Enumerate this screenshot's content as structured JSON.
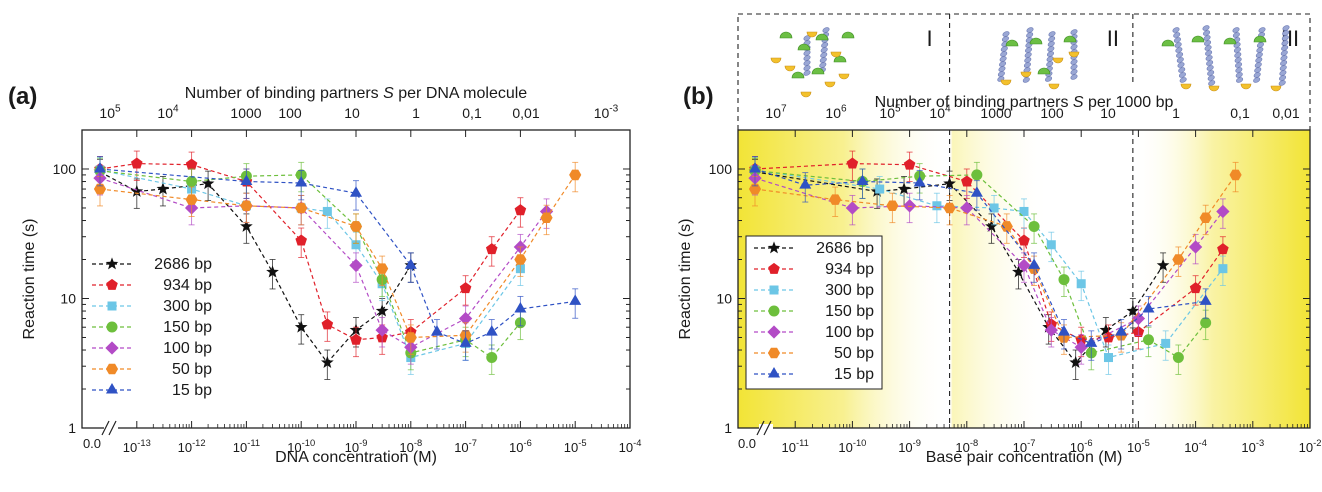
{
  "colors": {
    "2686 bp": "#111111",
    "934 bp": "#e0202a",
    "300 bp": "#6cc6e6",
    "150 bp": "#6dbf3c",
    "100 bp": "#b34bc6",
    "50 bp": "#f08a28",
    "15 bp": "#2f52c4",
    "gradient_yellow": "#f2e436"
  },
  "markers": {
    "2686 bp": "star",
    "934 bp": "pentagon",
    "300 bp": "square",
    "150 bp": "circle",
    "100 bp": "diamond",
    "50 bp": "hexagon",
    "15 bp": "triangle"
  },
  "chart_data": [
    {
      "type": "scatter",
      "panel_label": "(a)",
      "top_axis_label": "Number of binding partners S per DNA molecule",
      "top_axis_label_prefix": "Number of binding partners ",
      "top_axis_label_italic": "S",
      "top_axis_label_suffix": " per DNA molecule",
      "top_ticks": [
        "10^5",
        "10^4",
        "1000",
        "100",
        "10",
        "1",
        "0,1",
        "0,01",
        "10^-3"
      ],
      "xlabel": "DNA concentration (M)",
      "ylabel": "Reaction time (s)",
      "x_scale": "log",
      "y_scale": "log",
      "xlim": [
        1e-14,
        0.0001
      ],
      "ylim": [
        1,
        200
      ],
      "x_zero_label": "0.0",
      "x_ticks": [
        "10^-13",
        "10^-12",
        "10^-11",
        "10^-10",
        "10^-9",
        "10^-8",
        "10^-7",
        "10^-6",
        "10^-5",
        "10^-4"
      ],
      "y_ticks": [
        "1",
        "10",
        "100"
      ],
      "legend_position": "bottom-left",
      "legend_frame": false,
      "series": [
        {
          "name": "2686 bp",
          "x": [
            "0",
            1e-13,
            3e-13,
            2e-12,
            1e-11,
            3e-11,
            1e-10,
            3e-10,
            1e-09,
            3e-09,
            1e-08
          ],
          "y": [
            95,
            67,
            70,
            77,
            36,
            16,
            6,
            3.2,
            5.7,
            8,
            18
          ]
        },
        {
          "name": "934 bp",
          "x": [
            "0",
            1e-13,
            1e-12,
            1e-11,
            1e-10,
            3e-10,
            1e-09,
            3e-09,
            1e-08,
            1e-07,
            3e-07,
            1e-06
          ],
          "y": [
            100,
            110,
            108,
            80,
            28,
            6.3,
            4.8,
            5,
            5.5,
            12,
            24,
            48
          ]
        },
        {
          "name": "300 bp",
          "x": [
            "0",
            1e-12,
            1e-11,
            1e-10,
            3e-10,
            1e-09,
            3e-09,
            1e-08,
            1e-07,
            1e-06
          ],
          "y": [
            98,
            70,
            52,
            50,
            47,
            26,
            13,
            3.5,
            4.5,
            17
          ]
        },
        {
          "name": "150 bp",
          "x": [
            "0",
            1e-12,
            1e-11,
            1e-10,
            1e-09,
            3e-09,
            1e-08,
            1e-07,
            3e-07,
            1e-06
          ],
          "y": [
            97,
            80,
            88,
            90,
            36,
            14,
            3.8,
            4.8,
            3.5,
            6.5
          ]
        },
        {
          "name": "100 bp",
          "x": [
            "0",
            1e-12,
            1e-11,
            1e-10,
            1e-09,
            3e-09,
            1e-08,
            1e-07,
            1e-06,
            3e-06
          ],
          "y": [
            85,
            50,
            52,
            50,
            18,
            5.7,
            4.2,
            7,
            25,
            47
          ]
        },
        {
          "name": "50 bp",
          "x": [
            "0",
            1e-12,
            1e-11,
            1e-10,
            1e-09,
            3e-09,
            1e-08,
            1e-07,
            1e-06,
            3e-06,
            1e-05
          ],
          "y": [
            70,
            58,
            52,
            50,
            36,
            17,
            5,
            5.2,
            20,
            42,
            90
          ]
        },
        {
          "name": "15 bp",
          "x": [
            "0",
            1e-11,
            1e-10,
            1e-09,
            1e-08,
            3e-08,
            1e-07,
            3e-07,
            1e-06,
            1e-05
          ],
          "y": [
            100,
            80,
            78,
            65,
            18,
            5.5,
            4.5,
            5.5,
            8.3,
            9.5
          ]
        }
      ]
    },
    {
      "type": "scatter",
      "panel_label": "(b)",
      "top_axis_label": "Number of binding partners S per 1000 bp",
      "top_axis_label_prefix": "Number of binding partners ",
      "top_axis_label_italic": "S",
      "top_axis_label_suffix": " per 1000 bp",
      "top_ticks": [
        "10^7",
        "10^6",
        "10^5",
        "10^4",
        "1000",
        "100",
        "10",
        "1",
        "0,1",
        "0,01"
      ],
      "regime_labels": [
        "I",
        "II",
        "III"
      ],
      "xlabel": "Base pair concentration (M)",
      "ylabel": "Reaction time (s)",
      "x_scale": "log",
      "y_scale": "log",
      "xlim": [
        1e-12,
        0.01
      ],
      "ylim": [
        1,
        200
      ],
      "x_zero_label": "0.0",
      "x_ticks": [
        "10^-11",
        "10^-10",
        "10^-9",
        "10^-8",
        "10^-7",
        "10^-6",
        "10^-5",
        "10^-4",
        "10^-3",
        "10^-2"
      ],
      "y_ticks": [
        "1",
        "10",
        "100"
      ],
      "regime_boundaries": [
        5e-09,
        8e-06
      ],
      "legend_position": "bottom-left",
      "legend_frame": true,
      "series": [
        {
          "name": "2686 bp",
          "x": [
            "0",
            2.7e-10,
            8e-10,
            5e-09,
            2.7e-08,
            8e-08,
            2.7e-07,
            8e-07,
            2.7e-06,
            8e-06,
            2.7e-05
          ],
          "y": [
            95,
            67,
            70,
            77,
            36,
            16,
            6,
            3.2,
            5.7,
            8,
            18
          ]
        },
        {
          "name": "934 bp",
          "x": [
            "0",
            1e-10,
            1e-09,
            1e-08,
            1e-07,
            3e-07,
            1e-06,
            3e-06,
            1e-05,
            0.0001,
            0.0003
          ],
          "y": [
            100,
            110,
            108,
            80,
            28,
            6.3,
            4.8,
            5,
            5.5,
            12,
            24
          ]
        },
        {
          "name": "300 bp",
          "x": [
            "0",
            3e-10,
            3e-09,
            3e-08,
            1e-07,
            3e-07,
            1e-06,
            3e-06,
            3e-05,
            0.0003
          ],
          "y": [
            98,
            70,
            52,
            50,
            47,
            26,
            13,
            3.5,
            4.5,
            17
          ]
        },
        {
          "name": "150 bp",
          "x": [
            "0",
            1.5e-10,
            1.5e-09,
            1.5e-08,
            1.5e-07,
            5e-07,
            1.5e-06,
            1.5e-05,
            5e-05,
            0.00015
          ],
          "y": [
            97,
            80,
            88,
            90,
            36,
            14,
            3.8,
            4.8,
            3.5,
            6.5
          ]
        },
        {
          "name": "100 bp",
          "x": [
            "0",
            1e-10,
            1e-09,
            1e-08,
            1e-07,
            3e-07,
            1e-06,
            1e-05,
            0.0001,
            0.0003
          ],
          "y": [
            85,
            50,
            52,
            50,
            18,
            5.7,
            4.2,
            7,
            25,
            47
          ]
        },
        {
          "name": "50 bp",
          "x": [
            "0",
            5e-11,
            5e-10,
            5e-09,
            5e-08,
            1.5e-07,
            5e-07,
            5e-06,
            5e-05,
            0.00015,
            0.0005
          ],
          "y": [
            70,
            58,
            52,
            50,
            36,
            17,
            5,
            5.2,
            20,
            42,
            90
          ]
        },
        {
          "name": "15 bp",
          "x": [
            "0",
            1.5e-11,
            1.5e-10,
            1.5e-09,
            1.5e-08,
            1.5e-07,
            5e-07,
            1.5e-06,
            5e-06,
            1.5e-05,
            0.00015
          ],
          "y": [
            100,
            75,
            80,
            78,
            65,
            18,
            5.5,
            4.5,
            5.5,
            8.3,
            9.5
          ]
        }
      ]
    }
  ]
}
